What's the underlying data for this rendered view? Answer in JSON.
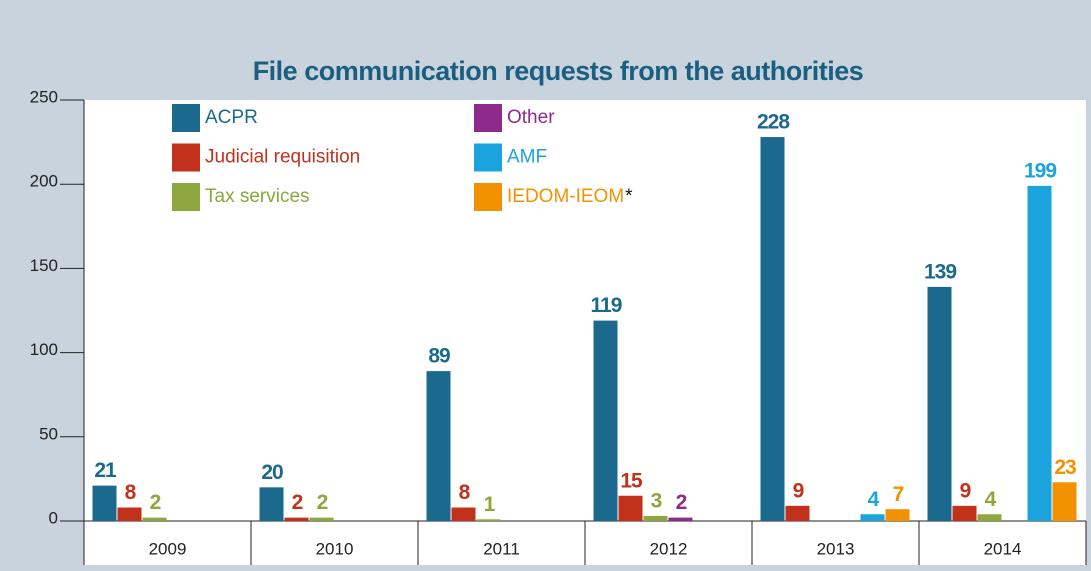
{
  "chart_data": {
    "type": "bar",
    "title": "File communication requests from the authorities",
    "categories": [
      "2009",
      "2010",
      "2011",
      "2012",
      "2013",
      "2014"
    ],
    "series": [
      {
        "name": "ACPR",
        "color": "#1b6a8e",
        "values": [
          21,
          20,
          89,
          119,
          228,
          139
        ]
      },
      {
        "name": "Judicial requisition",
        "color": "#c2311b",
        "values": [
          8,
          2,
          8,
          15,
          9,
          9
        ]
      },
      {
        "name": "Tax services",
        "color": "#8da63d",
        "values": [
          2,
          2,
          1,
          3,
          null,
          4
        ]
      },
      {
        "name": "Other",
        "color": "#8e2a8c",
        "values": [
          null,
          null,
          null,
          2,
          null,
          null
        ]
      },
      {
        "name": "AMF",
        "color": "#1aa3dc",
        "values": [
          null,
          null,
          null,
          null,
          4,
          199
        ]
      },
      {
        "name": "IEDOM-IEOM",
        "name_marker": "*",
        "color": "#f39200",
        "values": [
          null,
          null,
          null,
          null,
          7,
          23
        ]
      }
    ],
    "ylim": [
      0,
      250
    ],
    "yticks": [
      0,
      50,
      100,
      150,
      200,
      250
    ]
  }
}
